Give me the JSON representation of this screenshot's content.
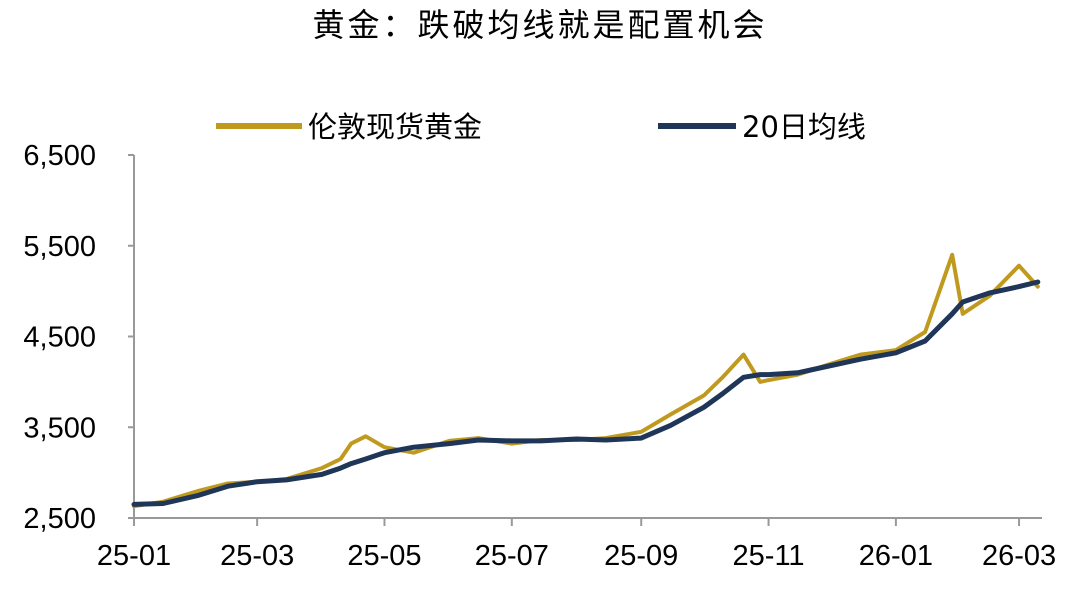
{
  "chart_data": {
    "type": "line",
    "title": "黄金：跌破均线就是配置机会",
    "xlabel": "",
    "ylabel": "",
    "ylim": [
      2500,
      6500
    ],
    "yticks": [
      "6,500",
      "5,500",
      "4,500",
      "3,500",
      "2,500"
    ],
    "ytick_values": [
      6500,
      5500,
      4500,
      3500,
      2500
    ],
    "xticks": [
      "25-01",
      "25-03",
      "25-05",
      "25-07",
      "25-09",
      "25-11",
      "26-01",
      "26-03"
    ],
    "xtick_values": [
      "2025-01-01",
      "2025-03-01",
      "2025-05-01",
      "2025-07-01",
      "2025-09-01",
      "2025-11-01",
      "2026-01-01",
      "2026-03-01"
    ],
    "legend_position": "top",
    "grid": false,
    "x": [
      "2025-01-01",
      "2025-01-15",
      "2025-02-01",
      "2025-02-15",
      "2025-03-01",
      "2025-03-15",
      "2025-04-01",
      "2025-04-10",
      "2025-04-15",
      "2025-04-22",
      "2025-05-01",
      "2025-05-15",
      "2025-06-01",
      "2025-06-15",
      "2025-07-01",
      "2025-07-15",
      "2025-08-01",
      "2025-08-15",
      "2025-09-01",
      "2025-09-15",
      "2025-10-01",
      "2025-10-10",
      "2025-10-20",
      "2025-10-28",
      "2025-11-01",
      "2025-11-15",
      "2025-12-01",
      "2025-12-15",
      "2026-01-01",
      "2026-01-15",
      "2026-01-28",
      "2026-02-02",
      "2026-02-15",
      "2026-03-01",
      "2026-03-10"
    ],
    "series": [
      {
        "name": "伦敦现货黄金",
        "color": "#C09A1F",
        "values": [
          2630,
          2680,
          2800,
          2880,
          2900,
          2930,
          3050,
          3150,
          3320,
          3400,
          3280,
          3220,
          3350,
          3380,
          3320,
          3360,
          3360,
          3380,
          3450,
          3640,
          3850,
          4050,
          4300,
          4000,
          4020,
          4080,
          4200,
          4300,
          4350,
          4550,
          5400,
          4750,
          4950,
          5280,
          5050
        ]
      },
      {
        "name": "20日均线",
        "color": "#1F3658",
        "values": [
          2650,
          2660,
          2750,
          2850,
          2900,
          2920,
          2980,
          3050,
          3100,
          3150,
          3220,
          3280,
          3320,
          3360,
          3350,
          3350,
          3370,
          3360,
          3380,
          3520,
          3720,
          3870,
          4050,
          4080,
          4080,
          4100,
          4180,
          4250,
          4320,
          4450,
          4750,
          4880,
          4980,
          5050,
          5100
        ]
      }
    ]
  }
}
